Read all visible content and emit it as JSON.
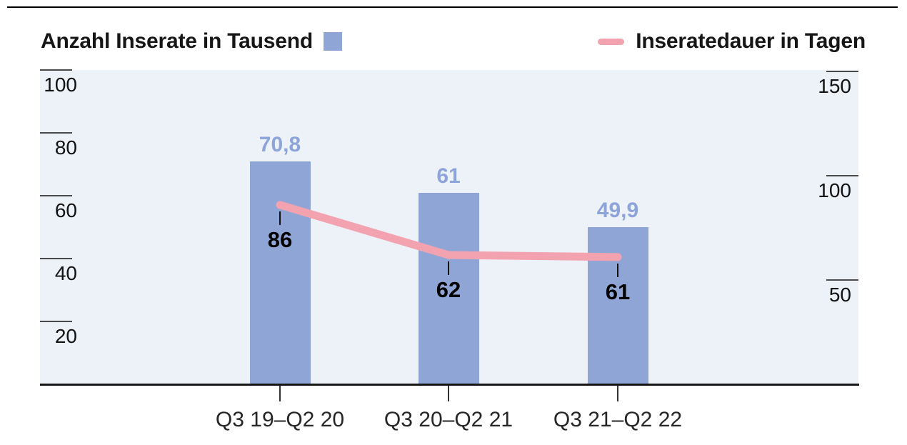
{
  "legend": {
    "bars_label": "Anzahl Inserate in Tausend",
    "line_label": "Inseratedauer in Tagen"
  },
  "colors": {
    "bar": "#8fa5d6",
    "bar_value_label": "#8da4da",
    "line": "#f3a2b0",
    "plot_background": "#edf1f8"
  },
  "left_axis": {
    "ticks": [
      "100",
      "80",
      "60",
      "40",
      "20"
    ]
  },
  "right_axis": {
    "ticks": [
      "150",
      "100",
      "50"
    ]
  },
  "chart_data": {
    "type": "bar+line",
    "categories": [
      "Q3 19–Q2 20",
      "Q3 20–Q2 21",
      "Q3 21–Q2 22"
    ],
    "series": [
      {
        "name": "Anzahl Inserate in Tausend",
        "type": "bar",
        "axis": "left",
        "values": [
          70.8,
          61,
          49.9
        ],
        "labels": [
          "70,8",
          "61",
          "49,9"
        ]
      },
      {
        "name": "Inseratedauer in Tagen",
        "type": "line",
        "axis": "right",
        "values": [
          86,
          62,
          61
        ],
        "labels": [
          "86",
          "62",
          "61"
        ]
      }
    ],
    "left_axis_range": [
      0,
      100
    ],
    "right_axis_range": [
      0,
      150
    ],
    "grid": false,
    "legend_position": "top"
  }
}
